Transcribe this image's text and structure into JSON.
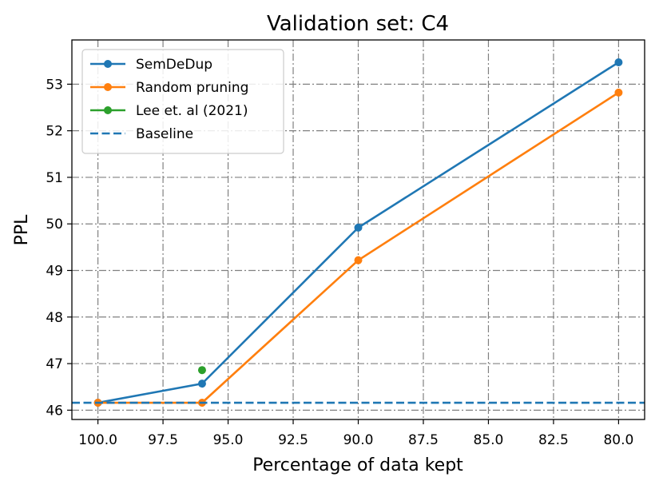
{
  "chart_data": {
    "type": "line",
    "title": "Validation set: C4",
    "xlabel": "Percentage of data kept",
    "ylabel": "PPL",
    "xlim": [
      101.0,
      79.0
    ],
    "ylim": [
      45.8,
      53.95
    ],
    "xticks": [
      100.0,
      97.5,
      95.0,
      92.5,
      90.0,
      87.5,
      85.0,
      82.5,
      80.0
    ],
    "xtick_labels": [
      "100.0",
      "97.5",
      "95.0",
      "92.5",
      "90.0",
      "87.5",
      "85.0",
      "82.5",
      "80.0"
    ],
    "yticks": [
      46,
      47,
      48,
      49,
      50,
      51,
      52,
      53
    ],
    "ytick_labels": [
      "46",
      "47",
      "48",
      "49",
      "50",
      "51",
      "52",
      "53"
    ],
    "grid": true,
    "legend_position": "top-left",
    "series": [
      {
        "name": "SemDeDup",
        "color": "#1f77b4",
        "style": "solid-marker",
        "x": [
          100,
          96,
          90,
          80
        ],
        "y": [
          46.16,
          46.57,
          49.92,
          53.47
        ]
      },
      {
        "name": "Random pruning",
        "color": "#ff7f0e",
        "style": "solid-marker",
        "x": [
          100,
          96,
          90,
          80
        ],
        "y": [
          46.16,
          46.16,
          49.22,
          52.82
        ]
      },
      {
        "name": "Lee et. al (2021)",
        "color": "#2ca02c",
        "style": "solid-marker",
        "x": [
          96
        ],
        "y": [
          46.86
        ]
      },
      {
        "name": "Baseline",
        "color": "#1f77b4",
        "style": "dashed-hline",
        "y": 46.16
      }
    ]
  }
}
